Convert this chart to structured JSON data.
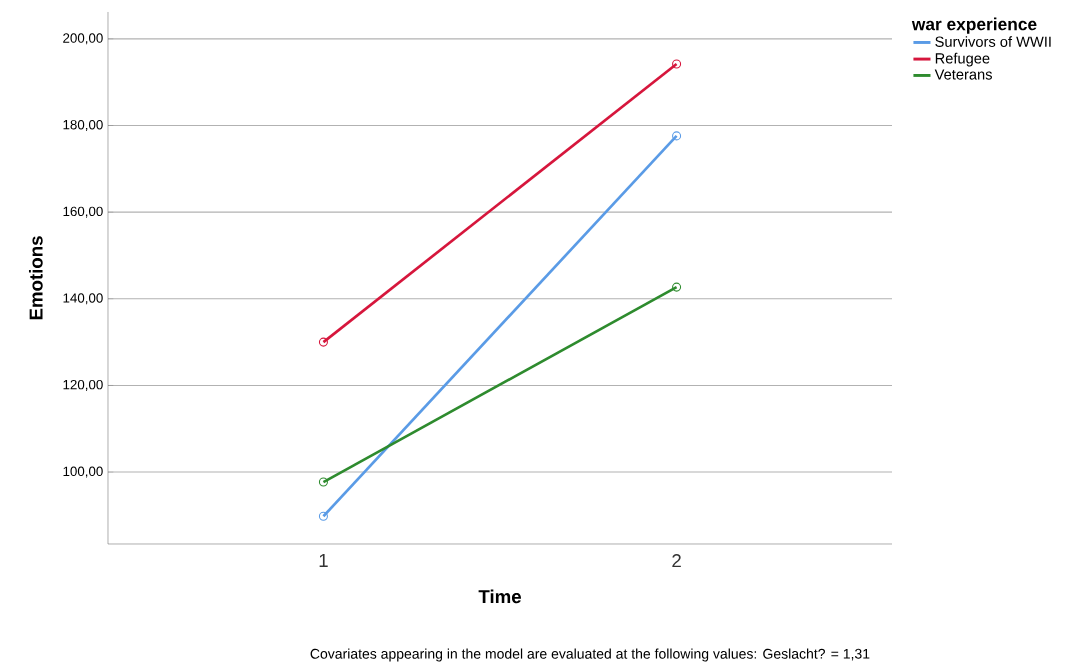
{
  "chart_data": {
    "type": "line",
    "xlabel": "Time",
    "ylabel": "Emotions",
    "legend_title": "war experience",
    "categories": [
      "1",
      "2"
    ],
    "series": [
      {
        "name": "Survivors of WWII",
        "color": "#5a9be6",
        "values": [
          89.8,
          177.6
        ]
      },
      {
        "name": "Refugee",
        "color": "#d6163c",
        "values": [
          130.0,
          194.2
        ]
      },
      {
        "name": "Veterans",
        "color": "#2e8b2e",
        "values": [
          97.7,
          142.7
        ]
      }
    ],
    "ylim": [
      83.4,
      206.2
    ],
    "yticks": [
      {
        "value": 100,
        "label": "100,00"
      },
      {
        "value": 120,
        "label": "120,00"
      },
      {
        "value": 140,
        "label": "140,00"
      },
      {
        "value": 160,
        "label": "160,00"
      },
      {
        "value": 180,
        "label": "180,00"
      },
      {
        "value": 200,
        "label": "200,00"
      }
    ],
    "grid": "y",
    "legend": "top right",
    "marker": "circle",
    "line_style": "solid",
    "annotations": [
      "Covariates appearing in the model are evaluated at the following values: Geslacht? = 1,31"
    ]
  }
}
